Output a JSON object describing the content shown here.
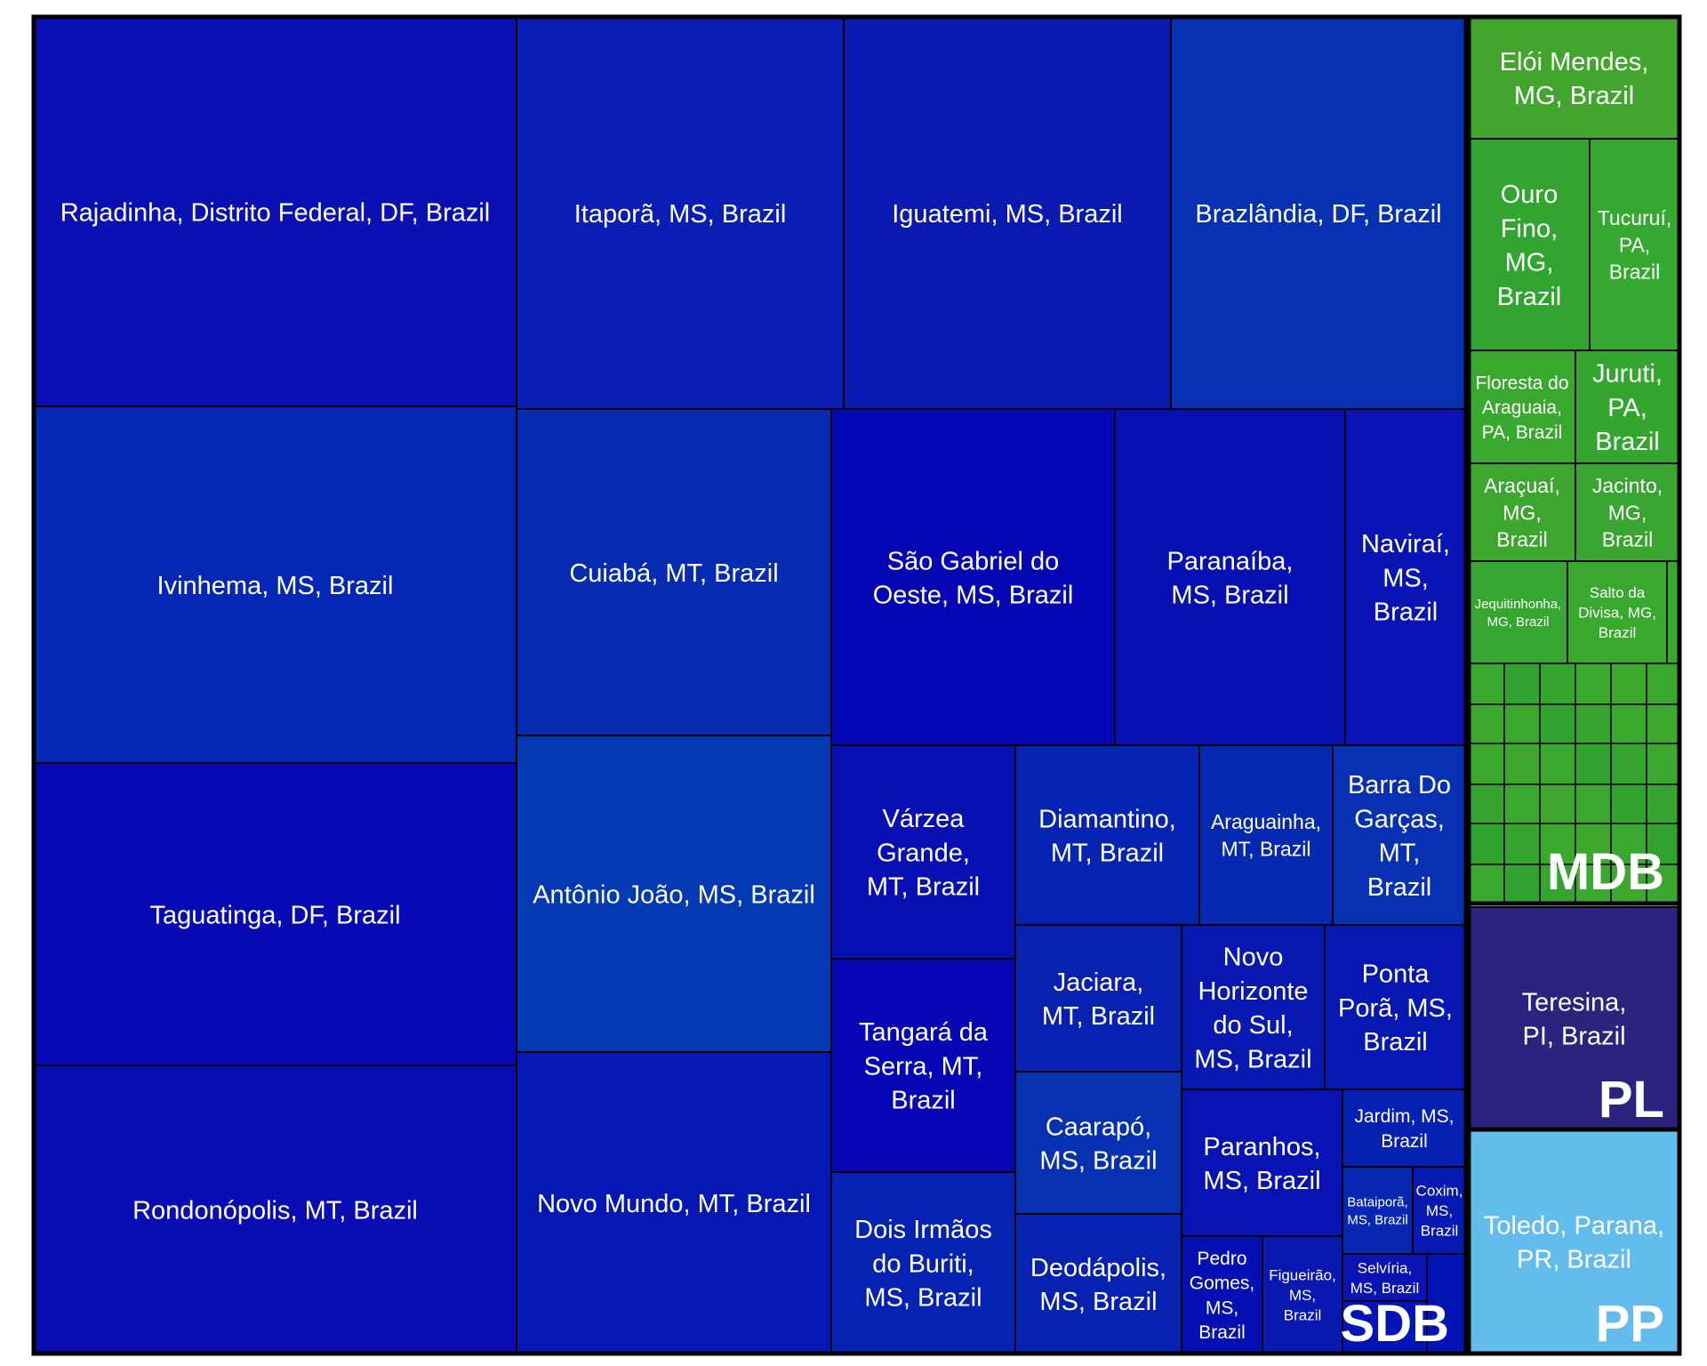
{
  "chart_data": {
    "type": "treemap",
    "groups": [
      {
        "name": "SDB",
        "color": "#0015b4",
        "items": [
          {
            "label": "Rajadinha, Distrito Federal, DF, Brazil",
            "color": "#0a10b4"
          },
          {
            "label": "Itaporã, MS, Brazil",
            "color": "#0a1db4"
          },
          {
            "label": "Iguatemi, MS, Brazil",
            "color": "#0a1ab0"
          },
          {
            "label": "Brazlândia, DF, Brazil",
            "color": "#0531b2"
          },
          {
            "label": "Ivinhema, MS, Brazil",
            "color": "#0428b3"
          },
          {
            "label": "Cuiabá, MT, Brazil",
            "color": "#062cb2"
          },
          {
            "label": "São Gabriel do Oeste, MS, Brazil",
            "color": "#0507b5"
          },
          {
            "label": "Paranaíba, MS, Brazil",
            "color": "#0610b3"
          },
          {
            "label": "Naviraí, MS, Brazil",
            "color": "#0814b3"
          },
          {
            "label": "Taguatinga, DF, Brazil",
            "color": "#0709b4"
          },
          {
            "label": "Antônio João, MS, Brazil",
            "color": "#0339b2"
          },
          {
            "label": "Várzea Grande, MT, Brazil",
            "color": "#0810b3"
          },
          {
            "label": "Diamantino, MT, Brazil",
            "color": "#0524b1"
          },
          {
            "label": "Araguainha, MT, Brazil",
            "color": "#052ab1"
          },
          {
            "label": "Barra Do Garças, MT, Brazil",
            "color": "#0730b2"
          },
          {
            "label": "Tangará da Serra, MT, Brazil",
            "color": "#0606b4"
          },
          {
            "label": "Jaciara, MT, Brazil",
            "color": "#0821b0"
          },
          {
            "label": "Novo Horizonte do Sul, MS, Brazil",
            "color": "#0819b2"
          },
          {
            "label": "Ponta Porã, MS, Brazil",
            "color": "#0617b2"
          },
          {
            "label": "Rondonópolis, MT, Brazil",
            "color": "#0a0db3"
          },
          {
            "label": "Novo Mundo, MT, Brazil",
            "color": "#0518b3"
          },
          {
            "label": "Caarapó, MS, Brazil",
            "color": "#0631b0"
          },
          {
            "label": "Paranhos, MS, Brazil",
            "color": "#0713b3"
          },
          {
            "label": "Jardim, MS, Brazil",
            "color": "#0620b1"
          },
          {
            "label": "Bataiporã, MS, Brazil",
            "color": "#0627b2"
          },
          {
            "label": "Coxim, MS, Brazil",
            "color": "#0619b2"
          },
          {
            "label": "Dois Irmãos do Buriti, MS, Brazil",
            "color": "#0622b2"
          },
          {
            "label": "Deodápolis, MS, Brazil",
            "color": "#0721b1"
          },
          {
            "label": "Pedro Gomes, MS, Brazil",
            "color": "#0510b4"
          },
          {
            "label": "Figueirão, MS, Brazil",
            "color": "#0a18b2"
          },
          {
            "label": "Selvíria, MS, Brazil",
            "color": "#0a14b3"
          }
        ]
      },
      {
        "name": "MDB",
        "color": "#38a82e",
        "items": [
          {
            "label": "Elói Mendes, MG, Brazil",
            "color": "#42a62e"
          },
          {
            "label": "Ouro Fino, MG, Brazil",
            "color": "#31a52f"
          },
          {
            "label": "Tucuruí, PA, Brazil",
            "color": "#34a82f"
          },
          {
            "label": "Floresta do Araguaia, PA, Brazil",
            "color": "#39a82e"
          },
          {
            "label": "Juruti, PA, Brazil",
            "color": "#33a62f"
          },
          {
            "label": "Araçuaí, MG, Brazil",
            "color": "#3ca62e"
          },
          {
            "label": "Jacinto, MG, Brazil",
            "color": "#37a52f"
          },
          {
            "label": "Jequitinhonha, MG, Brazil",
            "color": "#35a62f"
          },
          {
            "label": "Salto da Divisa, MG, Brazil",
            "color": "#3aa82e"
          }
        ]
      },
      {
        "name": "PL",
        "color": "#2b237e",
        "items": [
          {
            "label": "Teresina, PI, Brazil",
            "color": "#2b237e"
          }
        ]
      },
      {
        "name": "PP",
        "color": "#63bdec",
        "items": [
          {
            "label": "Toledo, Parana, PR, Brazil",
            "color": "#63bdec"
          }
        ]
      }
    ]
  }
}
